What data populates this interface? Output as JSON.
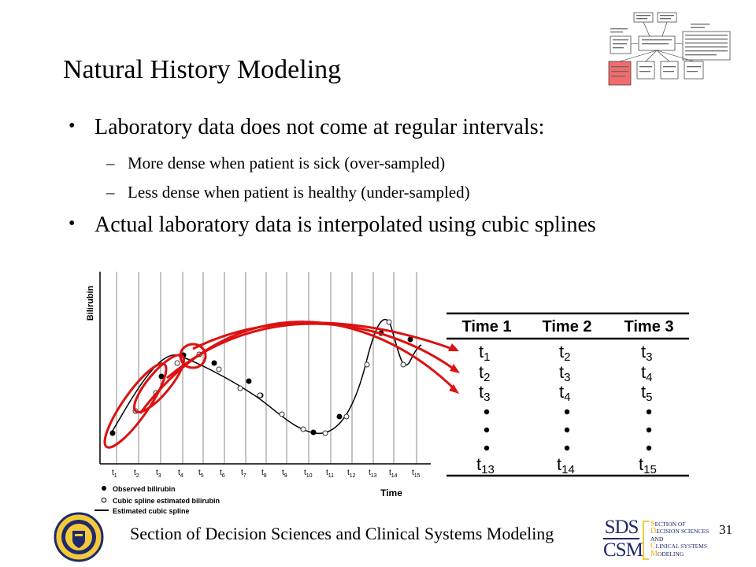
{
  "title": "Natural History Modeling",
  "bullets": [
    {
      "text": "Laboratory data does not come at regular intervals:",
      "subs": [
        "More dense when patient is sick (over-sampled)",
        "Less dense when patient is healthy (under-sampled)"
      ]
    },
    {
      "text": "Actual laboratory data is interpolated using cubic splines",
      "subs": []
    }
  ],
  "bullet_char": "•",
  "dash_char": "–",
  "chart": {
    "y_axis_label": "Bilirubin",
    "x_axis_label": "Time",
    "ticks": [
      "1",
      "2",
      "3",
      "4",
      "5",
      "6",
      "7",
      "8",
      "9",
      "10",
      "11",
      "12",
      "13",
      "14",
      "15"
    ],
    "legend": [
      "Observed bilirubin",
      "Cubic spline estimated bilirubin",
      "Estimated cubic spline"
    ],
    "highlight_color": "#dd1111"
  },
  "table": {
    "headers": [
      "Time 1",
      "Time 2",
      "Time 3"
    ],
    "rows": [
      [
        "1",
        "2",
        "3"
      ],
      [
        "2",
        "3",
        "4"
      ],
      [
        "3",
        "4",
        "5"
      ]
    ],
    "last_row": [
      "13",
      "14",
      "15"
    ]
  },
  "footer": "Section of Decision Sciences and Clinical Systems Modeling",
  "page_number": "31",
  "logo": {
    "sds": "SDS",
    "csm": "CSM",
    "lines": [
      {
        "cap": "S",
        "rest": "ECTION OF"
      },
      {
        "cap": "D",
        "rest": "ECISION SCIENCES"
      },
      {
        "cap": "",
        "rest": "AND"
      },
      {
        "cap": "C",
        "rest": "LINICAL SYSTEMS"
      },
      {
        "cap": "M",
        "rest": "ODELING"
      }
    ]
  }
}
